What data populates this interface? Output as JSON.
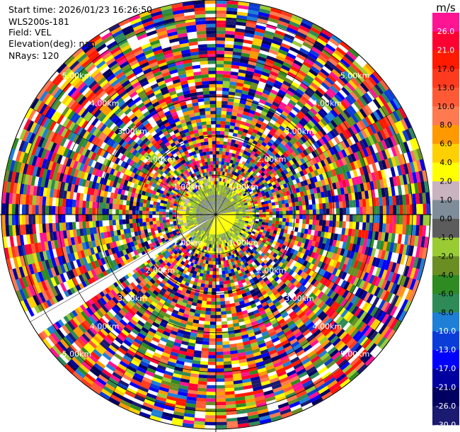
{
  "header": {
    "start_time": "Start time: 2026/01/23 16:26:50",
    "instrument": "WLS200s-181",
    "field": "Field: VEL",
    "elevation": "Elevation(deg): nan",
    "nrays": "NRays: 120"
  },
  "chart_data": {
    "type": "heatmap",
    "title": "",
    "field": "VEL",
    "units": "m/s",
    "n_rays": 120,
    "range_rings_km": [
      "1.00km",
      "2.00km",
      "3.00km",
      "4.00km",
      "5.00km"
    ],
    "crosshair": true,
    "blank_sector_deg": [
      236,
      241
    ],
    "colorbar": {
      "label": "m/s",
      "ticks": [
        "26.0",
        "21.0",
        "17.0",
        "13.0",
        "10.0",
        "8.0",
        "6.0",
        "4.0",
        "2.0",
        "1.0",
        "0.0",
        "-1.0",
        "-2.0",
        "-4.0",
        "-6.0",
        "-8.0",
        "-10.0",
        "-13.0",
        "-17.0",
        "-21.0",
        "-26.0",
        "-30.0"
      ],
      "colors": [
        "#ff1493",
        "#ff0033",
        "#ff1a00",
        "#ff3b1f",
        "#ff5a36",
        "#ff7a4f",
        "#ff9900",
        "#ffd000",
        "#ffff00",
        "#c9b3bf",
        "#7f8c99",
        "#5c5c5c",
        "#99cc33",
        "#6b8e23",
        "#2e8b22",
        "#2e8b57",
        "#1e7fd6",
        "#0a3dd8",
        "#0000ff",
        "#0000a0",
        "#000060",
        "#1a1a70"
      ]
    },
    "inner_zone": {
      "radius_km": 1.0,
      "colors": [
        "#ffff00",
        "#8fa63a",
        "#7f8c99"
      ]
    }
  }
}
